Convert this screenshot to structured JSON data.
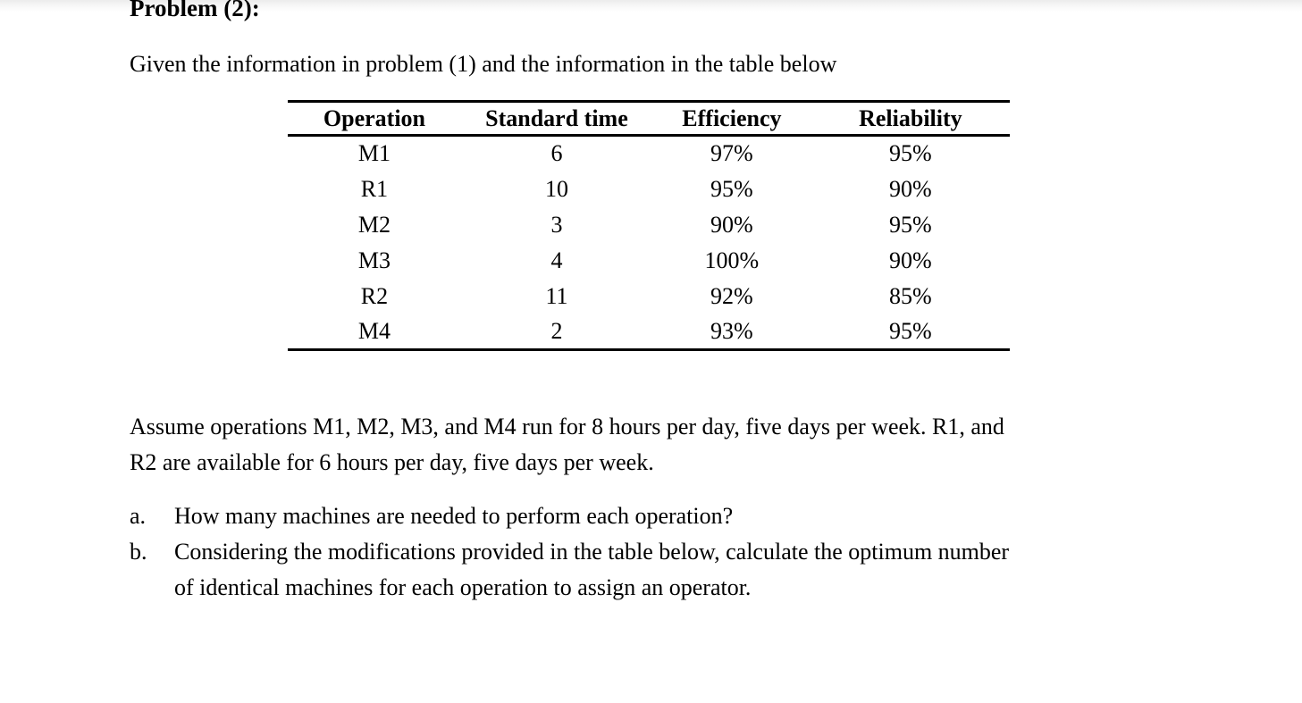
{
  "page": {
    "heading": "Problem (2):",
    "intro": "Given the information in problem (1) and the information in the table below"
  },
  "table": {
    "headers": [
      "Operation",
      "Standard time",
      "Efficiency",
      "Reliability"
    ],
    "rows": [
      [
        "M1",
        "6",
        "97%",
        "95%"
      ],
      [
        "R1",
        "10",
        "95%",
        "90%"
      ],
      [
        "M2",
        "3",
        "90%",
        "95%"
      ],
      [
        "M3",
        "4",
        "100%",
        "90%"
      ],
      [
        "R2",
        "11",
        "92%",
        "85%"
      ],
      [
        "M4",
        "2",
        "93%",
        "95%"
      ]
    ]
  },
  "paragraph": {
    "line1": "Assume operations M1, M2, M3, and M4 run for 8 hours per day, five days per week. R1, and",
    "line2": "R2 are available for 6 hours per day, five days per week."
  },
  "questions": [
    {
      "marker": "a.",
      "lines": [
        "How many machines are needed to perform each operation?"
      ]
    },
    {
      "marker": "b.",
      "lines": [
        "Considering the modifications provided in the table below, calculate the optimum number",
        "of identical machines for each operation to assign an operator."
      ]
    }
  ],
  "colors": {
    "text": "#000000",
    "background": "#ffffff",
    "rule": "#000000",
    "top_fade": "#ececec"
  }
}
